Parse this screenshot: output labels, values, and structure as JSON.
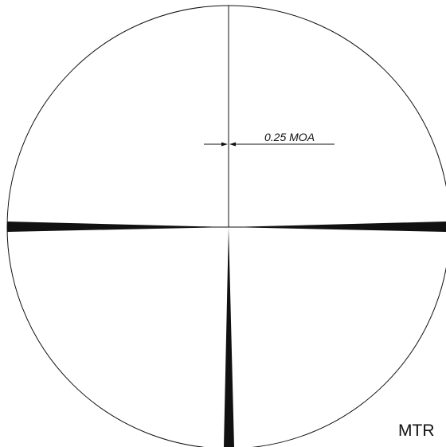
{
  "diagram": {
    "dimension_label": "0.25 MOA",
    "reticle_name": "MTR",
    "colors": {
      "background": "#ffffff",
      "ink": "#111111"
    }
  }
}
